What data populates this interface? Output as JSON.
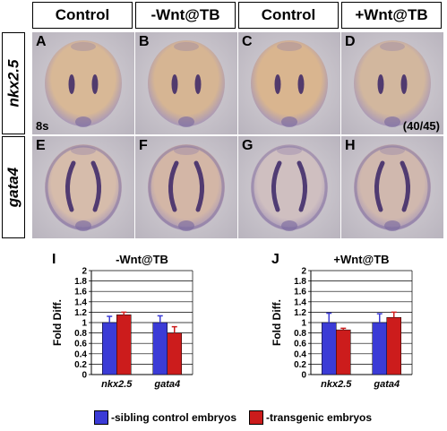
{
  "headers": [
    "Control",
    "-Wnt@TB",
    "Control",
    "+Wnt@TB"
  ],
  "row_labels": [
    "nkx2.5",
    "gata4"
  ],
  "panels": [
    {
      "label": "A",
      "gene": "nkx2.5",
      "tone": "#d8b896",
      "note": "8s"
    },
    {
      "label": "B",
      "gene": "nkx2.5",
      "tone": "#d6b593",
      "note": ""
    },
    {
      "label": "C",
      "gene": "nkx2.5",
      "tone": "#d9b58f",
      "note": ""
    },
    {
      "label": "D",
      "gene": "nkx2.5",
      "tone": "#d2b79e",
      "note": "(40/45)"
    },
    {
      "label": "E",
      "gene": "gata4",
      "tone": "#d6bcab",
      "note": ""
    },
    {
      "label": "F",
      "gene": "gata4",
      "tone": "#d3b6a6",
      "note": ""
    },
    {
      "label": "G",
      "gene": "gata4",
      "tone": "#cfbfc0",
      "note": ""
    },
    {
      "label": "H",
      "gene": "gata4",
      "tone": "#d0b8ae",
      "note": ""
    }
  ],
  "colors": {
    "sibling": "#3b3bd6",
    "transgenic": "#cc1c1c",
    "stain": "#3a2466"
  },
  "chart_data": [
    {
      "type": "bar",
      "panel": "I",
      "title": "-Wnt@TB",
      "categories": [
        "nkx2.5",
        "gata4"
      ],
      "series": [
        {
          "name": "-sibling control embryos",
          "values": [
            1.0,
            1.0
          ],
          "errors": [
            0.12,
            0.13
          ]
        },
        {
          "name": "-transgenic embryos",
          "values": [
            1.15,
            0.8
          ],
          "errors": [
            0.05,
            0.12
          ]
        }
      ],
      "ylabel": "Fold Diff.",
      "ylim": [
        0,
        2
      ],
      "yticks": [
        "0",
        "0.2",
        "0.4",
        "0.6",
        "0.8",
        "1",
        "1.2",
        "1.4",
        "1.6",
        "1.8",
        "2"
      ],
      "grid": true
    },
    {
      "type": "bar",
      "panel": "J",
      "title": "+Wnt@TB",
      "categories": [
        "nkx2.5",
        "gata4"
      ],
      "series": [
        {
          "name": "-sibling control embryos",
          "values": [
            1.0,
            1.0
          ],
          "errors": [
            0.18,
            0.17
          ]
        },
        {
          "name": "-transgenic embryos",
          "values": [
            0.86,
            1.1
          ],
          "errors": [
            0.03,
            0.1
          ]
        }
      ],
      "ylabel": "Fold Diff.",
      "ylim": [
        0,
        2
      ],
      "yticks": [
        "0",
        "0.2",
        "0.4",
        "0.6",
        "0.8",
        "1",
        "1.2",
        "1.4",
        "1.6",
        "1.8",
        "2"
      ],
      "grid": true
    }
  ],
  "legend": {
    "sibling": "-sibling control embryos",
    "transgenic": "-transgenic embryos"
  }
}
